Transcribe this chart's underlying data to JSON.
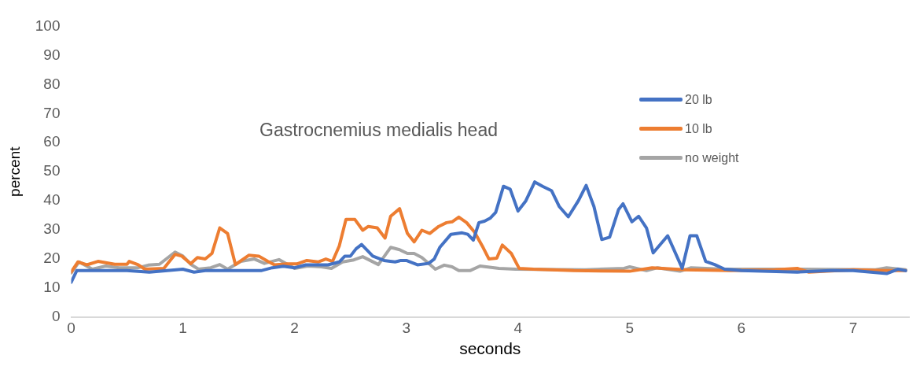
{
  "chart_data": {
    "type": "line",
    "title": "Gastrocnemius medialis head",
    "xlabel": "seconds",
    "ylabel": "percent",
    "xlim": [
      0,
      7.5
    ],
    "xticks": [
      0,
      1,
      2,
      3,
      4,
      5,
      6,
      7
    ],
    "ylim": [
      0,
      100
    ],
    "yticks": [
      0,
      10,
      20,
      30,
      40,
      50,
      60,
      70,
      80,
      90,
      100
    ],
    "grid": false,
    "legend": "top right",
    "marker": "none",
    "line_style": "solid",
    "series": [
      {
        "name": "20 lb",
        "color": "#4472c4",
        "x": [
          0,
          0.05,
          0.5,
          0.7,
          1.0,
          1.1,
          1.2,
          1.5,
          1.7,
          1.8,
          1.9,
          2.0,
          2.1,
          2.3,
          2.4,
          2.45,
          2.5,
          2.55,
          2.6,
          2.7,
          2.8,
          2.9,
          2.95,
          3.0,
          3.1,
          3.2,
          3.25,
          3.3,
          3.4,
          3.5,
          3.55,
          3.6,
          3.65,
          3.7,
          3.75,
          3.8,
          3.87,
          3.93,
          4.0,
          4.07,
          4.15,
          4.22,
          4.3,
          4.37,
          4.45,
          4.54,
          4.61,
          4.68,
          4.75,
          4.82,
          4.9,
          4.94,
          5.02,
          5.08,
          5.15,
          5.21,
          5.34,
          5.47,
          5.54,
          5.6,
          5.68,
          5.76,
          5.85,
          6.0,
          6.5,
          6.8,
          7.0,
          7.3,
          7.4,
          7.47
        ],
        "values": [
          12,
          16,
          16,
          15.5,
          16.5,
          15.5,
          16,
          16,
          16,
          17,
          17.5,
          17,
          18,
          18,
          19,
          21,
          21,
          23.5,
          25,
          21,
          19.5,
          19,
          19.5,
          19.5,
          18,
          18.5,
          20,
          24,
          28.5,
          29,
          28.5,
          26.5,
          32.5,
          33,
          34,
          36,
          45,
          44,
          36.5,
          40,
          46.5,
          45,
          43.5,
          38,
          34.5,
          40,
          45.3,
          38,
          26.7,
          27.5,
          37,
          39,
          32.8,
          34.7,
          30.7,
          22.1,
          28,
          16.8,
          28,
          28,
          19.2,
          18.1,
          16.5,
          16,
          15.5,
          16,
          16,
          15,
          16.5,
          16
        ]
      },
      {
        "name": "10 lb",
        "color": "#ed7d31",
        "x": [
          0,
          0.06,
          0.14,
          0.24,
          0.39,
          0.5,
          0.52,
          0.6,
          0.66,
          0.83,
          0.88,
          0.93,
          0.99,
          1.07,
          1.13,
          1.2,
          1.26,
          1.33,
          1.4,
          1.47,
          1.59,
          1.68,
          1.76,
          1.82,
          1.93,
          2.02,
          2.11,
          2.21,
          2.28,
          2.34,
          2.4,
          2.46,
          2.54,
          2.61,
          2.66,
          2.74,
          2.81,
          2.86,
          2.94,
          3.01,
          3.07,
          3.14,
          3.21,
          3.29,
          3.36,
          3.41,
          3.47,
          3.54,
          3.61,
          3.68,
          3.74,
          3.81,
          3.86,
          3.94,
          4.01,
          4.14,
          4.5,
          5.0,
          5.2,
          5.5,
          5.9,
          6.3,
          6.5,
          6.6,
          7.0,
          7.3,
          7.47
        ],
        "values": [
          15.5,
          19,
          18,
          19.2,
          18.2,
          18.2,
          19.2,
          18,
          16.5,
          16.8,
          19.2,
          21.6,
          21,
          18.4,
          20.5,
          20,
          21.9,
          30.7,
          28.8,
          18.1,
          21.3,
          21,
          19.2,
          18,
          18.3,
          18.3,
          19.5,
          19,
          20,
          19.2,
          24.5,
          33.6,
          33.6,
          29.9,
          31.2,
          30.7,
          27.2,
          34.7,
          37.3,
          28.8,
          25.9,
          29.9,
          28.8,
          31.2,
          32.5,
          32.8,
          34.4,
          32.5,
          29.3,
          24.5,
          20,
          20.3,
          24.8,
          21.9,
          16.8,
          16.5,
          16,
          15.8,
          17,
          16.3,
          16,
          16.3,
          16.8,
          15.5,
          16.3,
          16,
          16
        ]
      },
      {
        "name": "no weight",
        "color": "#a5a5a5",
        "x": [
          0,
          0.07,
          0.19,
          0.31,
          0.43,
          0.6,
          0.69,
          0.79,
          0.93,
          1.0,
          1.07,
          1.14,
          1.25,
          1.33,
          1.4,
          1.52,
          1.64,
          1.73,
          1.86,
          2.0,
          2.12,
          2.24,
          2.33,
          2.43,
          2.53,
          2.61,
          2.75,
          2.86,
          2.94,
          3.01,
          3.07,
          3.14,
          3.26,
          3.34,
          3.41,
          3.47,
          3.57,
          3.66,
          3.83,
          3.98,
          4.6,
          4.95,
          5.0,
          5.15,
          5.25,
          5.45,
          5.55,
          5.85,
          6.5,
          7.2,
          7.3,
          7.47
        ],
        "values": [
          15.2,
          19,
          16.5,
          17.6,
          17,
          17,
          17.9,
          18.2,
          22.4,
          21,
          18.2,
          16.5,
          17,
          18.1,
          16.5,
          19.2,
          20,
          18.5,
          19.8,
          16.8,
          17.6,
          17.3,
          16.8,
          19,
          19.7,
          20.8,
          18.1,
          24,
          23.2,
          21.9,
          21.9,
          20.5,
          16.5,
          17.9,
          17.3,
          16,
          16,
          17.6,
          16.8,
          16.5,
          16.3,
          16.8,
          17.3,
          16,
          17,
          15.8,
          17,
          16.5,
          16.5,
          16.3,
          17,
          16.3
        ]
      }
    ]
  }
}
